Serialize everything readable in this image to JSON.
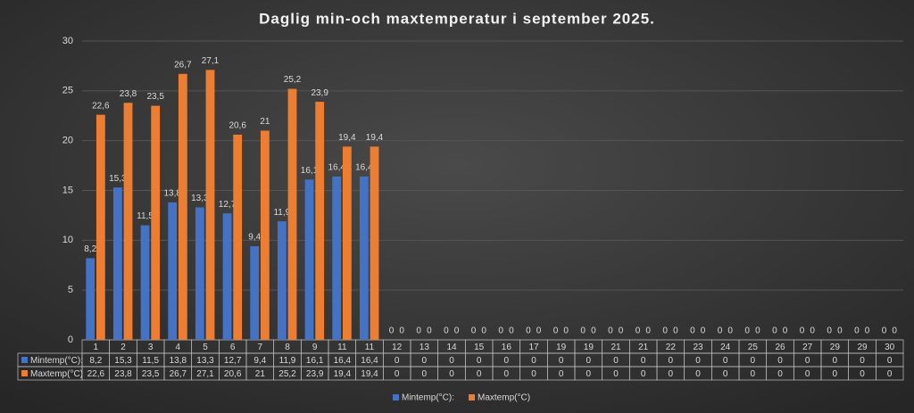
{
  "chart_data": {
    "type": "bar",
    "title": "Daglig min-och maxtemperatur i september 2025.",
    "categories": [
      "1",
      "2",
      "3",
      "4",
      "5",
      "6",
      "7",
      "8",
      "9",
      "11",
      "11",
      "12",
      "13",
      "14",
      "15",
      "16",
      "17",
      "19",
      "19",
      "21",
      "21",
      "22",
      "23",
      "24",
      "25",
      "26",
      "27",
      "29",
      "29",
      "30"
    ],
    "series": [
      {
        "name": "Mintemp(°C):",
        "color": "#4472c4",
        "values": [
          8.2,
          15.3,
          11.5,
          13.8,
          13.3,
          12.7,
          9.4,
          11.9,
          16.1,
          16.4,
          16.4,
          0,
          0,
          0,
          0,
          0,
          0,
          0,
          0,
          0,
          0,
          0,
          0,
          0,
          0,
          0,
          0,
          0,
          0,
          0
        ],
        "value_labels": [
          "8,2",
          "15,3",
          "11,5",
          "13,8",
          "13,3",
          "12,7",
          "9,4",
          "11,9",
          "16,1",
          "16,4",
          "16,4",
          "0",
          "0",
          "0",
          "0",
          "0",
          "0",
          "0",
          "0",
          "0",
          "0",
          "0",
          "0",
          "0",
          "0",
          "0",
          "0",
          "0",
          "0",
          "0"
        ]
      },
      {
        "name": "Maxtemp(°C)",
        "color": "#ed7d31",
        "values": [
          22.6,
          23.8,
          23.5,
          26.7,
          27.1,
          20.6,
          21,
          25.2,
          23.9,
          19.4,
          19.4,
          0,
          0,
          0,
          0,
          0,
          0,
          0,
          0,
          0,
          0,
          0,
          0,
          0,
          0,
          0,
          0,
          0,
          0,
          0
        ],
        "value_labels": [
          "22,6",
          "23,8",
          "23,5",
          "26,7",
          "27,1",
          "20,6",
          "21",
          "25,2",
          "23,9",
          "19,4",
          "19,4",
          "0",
          "0",
          "0",
          "0",
          "0",
          "0",
          "0",
          "0",
          "0",
          "0",
          "0",
          "0",
          "0",
          "0",
          "0",
          "0",
          "0",
          "0",
          "0"
        ]
      }
    ],
    "ylim": [
      0,
      30
    ],
    "yticks": [
      0,
      5,
      10,
      15,
      20,
      25,
      30
    ],
    "grid": true
  }
}
